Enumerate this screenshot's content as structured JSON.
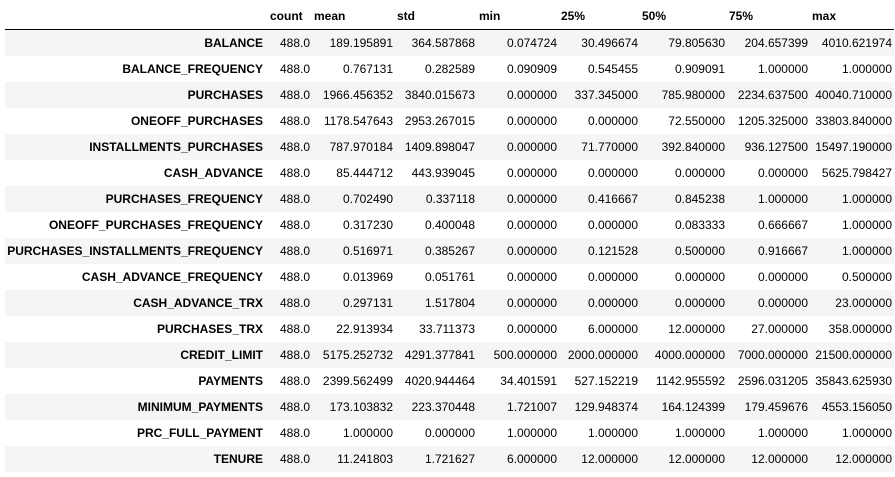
{
  "table": {
    "index_header": "",
    "columns": [
      "count",
      "mean",
      "std",
      "min",
      "25%",
      "50%",
      "75%",
      "max"
    ],
    "rows": [
      {
        "label": "BALANCE",
        "values": [
          "488.0",
          "189.195891",
          "364.587868",
          "0.074724",
          "30.496674",
          "79.805630",
          "204.657399",
          "4010.621974"
        ]
      },
      {
        "label": "BALANCE_FREQUENCY",
        "values": [
          "488.0",
          "0.767131",
          "0.282589",
          "0.090909",
          "0.545455",
          "0.909091",
          "1.000000",
          "1.000000"
        ]
      },
      {
        "label": "PURCHASES",
        "values": [
          "488.0",
          "1966.456352",
          "3840.015673",
          "0.000000",
          "337.345000",
          "785.980000",
          "2234.637500",
          "40040.710000"
        ]
      },
      {
        "label": "ONEOFF_PURCHASES",
        "values": [
          "488.0",
          "1178.547643",
          "2953.267015",
          "0.000000",
          "0.000000",
          "72.550000",
          "1205.325000",
          "33803.840000"
        ]
      },
      {
        "label": "INSTALLMENTS_PURCHASES",
        "values": [
          "488.0",
          "787.970184",
          "1409.898047",
          "0.000000",
          "71.770000",
          "392.840000",
          "936.127500",
          "15497.190000"
        ]
      },
      {
        "label": "CASH_ADVANCE",
        "values": [
          "488.0",
          "85.444712",
          "443.939045",
          "0.000000",
          "0.000000",
          "0.000000",
          "0.000000",
          "5625.798427"
        ]
      },
      {
        "label": "PURCHASES_FREQUENCY",
        "values": [
          "488.0",
          "0.702490",
          "0.337118",
          "0.000000",
          "0.416667",
          "0.845238",
          "1.000000",
          "1.000000"
        ]
      },
      {
        "label": "ONEOFF_PURCHASES_FREQUENCY",
        "values": [
          "488.0",
          "0.317230",
          "0.400048",
          "0.000000",
          "0.000000",
          "0.083333",
          "0.666667",
          "1.000000"
        ]
      },
      {
        "label": "PURCHASES_INSTALLMENTS_FREQUENCY",
        "values": [
          "488.0",
          "0.516971",
          "0.385267",
          "0.000000",
          "0.121528",
          "0.500000",
          "0.916667",
          "1.000000"
        ]
      },
      {
        "label": "CASH_ADVANCE_FREQUENCY",
        "values": [
          "488.0",
          "0.013969",
          "0.051761",
          "0.000000",
          "0.000000",
          "0.000000",
          "0.000000",
          "0.500000"
        ]
      },
      {
        "label": "CASH_ADVANCE_TRX",
        "values": [
          "488.0",
          "0.297131",
          "1.517804",
          "0.000000",
          "0.000000",
          "0.000000",
          "0.000000",
          "23.000000"
        ]
      },
      {
        "label": "PURCHASES_TRX",
        "values": [
          "488.0",
          "22.913934",
          "33.711373",
          "0.000000",
          "6.000000",
          "12.000000",
          "27.000000",
          "358.000000"
        ]
      },
      {
        "label": "CREDIT_LIMIT",
        "values": [
          "488.0",
          "5175.252732",
          "4291.377841",
          "500.000000",
          "2000.000000",
          "4000.000000",
          "7000.000000",
          "21500.000000"
        ]
      },
      {
        "label": "PAYMENTS",
        "values": [
          "488.0",
          "2399.562499",
          "4020.944464",
          "34.401591",
          "527.152219",
          "1142.955592",
          "2596.031205",
          "35843.625930"
        ]
      },
      {
        "label": "MINIMUM_PAYMENTS",
        "values": [
          "488.0",
          "173.103832",
          "223.370448",
          "1.721007",
          "129.948374",
          "164.124399",
          "179.459676",
          "4553.156050"
        ]
      },
      {
        "label": "PRC_FULL_PAYMENT",
        "values": [
          "488.0",
          "1.000000",
          "0.000000",
          "1.000000",
          "1.000000",
          "1.000000",
          "1.000000",
          "1.000000"
        ]
      },
      {
        "label": "TENURE",
        "values": [
          "488.0",
          "11.241803",
          "1.721627",
          "6.000000",
          "12.000000",
          "12.000000",
          "12.000000",
          "12.000000"
        ]
      }
    ]
  }
}
